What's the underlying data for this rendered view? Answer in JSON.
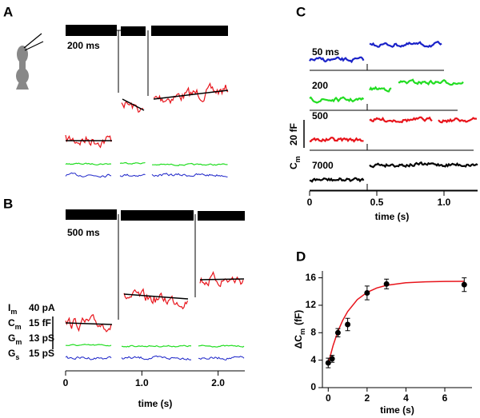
{
  "chart_data": [
    {
      "type": "trace",
      "label": "A",
      "scale_label": "200 ms"
    },
    {
      "type": "trace",
      "label": "B",
      "scale_label": "500 ms",
      "xlim": [
        0,
        2.35
      ],
      "xticks": [
        0,
        {
          "value": 1,
          "label": "1.0"
        },
        {
          "value": 2,
          "label": "2.0"
        }
      ],
      "xlabel": "time (s)",
      "series": [
        {
          "name": "I",
          "sub": "m",
          "scale": "40 pA",
          "color": "#000000"
        },
        {
          "name": "C",
          "sub": "m",
          "scale": "15 fF",
          "color": "#e8141b"
        },
        {
          "name": "G",
          "sub": "m",
          "scale": "13 pS",
          "color": "#22dd22"
        },
        {
          "name": "G",
          "sub": "s",
          "scale": "15 pS",
          "color": "#1a22c8"
        }
      ]
    },
    {
      "type": "trace",
      "label": "C",
      "ylabel": "C",
      "ylabel_sub": "m",
      "scale_label": "20 fF",
      "xlim": [
        0,
        1.25
      ],
      "xticks": [
        0,
        0.5,
        {
          "value": 1,
          "label": "1.0"
        }
      ],
      "xlabel": "time (s)",
      "rows": [
        {
          "name": "50 ms",
          "color": "#1a22c8"
        },
        {
          "name": "200",
          "color": "#22dd22"
        },
        {
          "name": "500",
          "color": "#e8141b"
        },
        {
          "name": "7000",
          "color": "#000000"
        }
      ]
    },
    {
      "type": "scatter",
      "label": "D",
      "xlabel": "time (s)",
      "ylabel": "ΔC",
      "ylabel_sub": "m",
      "ylabel_unit": "(fF)",
      "x": [
        0,
        0.2,
        0.5,
        1,
        2,
        3,
        7
      ],
      "values": [
        3.6,
        4.2,
        8,
        9.2,
        13.8,
        15.1,
        15
      ],
      "errors": [
        0.7,
        0.5,
        0.6,
        0.9,
        1,
        0.7,
        1
      ],
      "color": "#000000",
      "fit": {
        "color": "#e8141b",
        "x": [
          0,
          0.25,
          0.5,
          0.75,
          1,
          1.5,
          2,
          2.5,
          3,
          4,
          5,
          6,
          7
        ],
        "values": [
          3.5,
          6.15,
          8.22,
          9.83,
          11.08,
          12.83,
          13.88,
          14.52,
          14.9,
          15.28,
          15.42,
          15.47,
          15.49
        ]
      },
      "xlim": [
        -0.3,
        7.4
      ],
      "xticks": [
        0,
        2,
        4,
        6
      ],
      "ylim": [
        0,
        17
      ],
      "yticks": [
        0,
        4,
        8,
        12,
        16
      ]
    }
  ]
}
